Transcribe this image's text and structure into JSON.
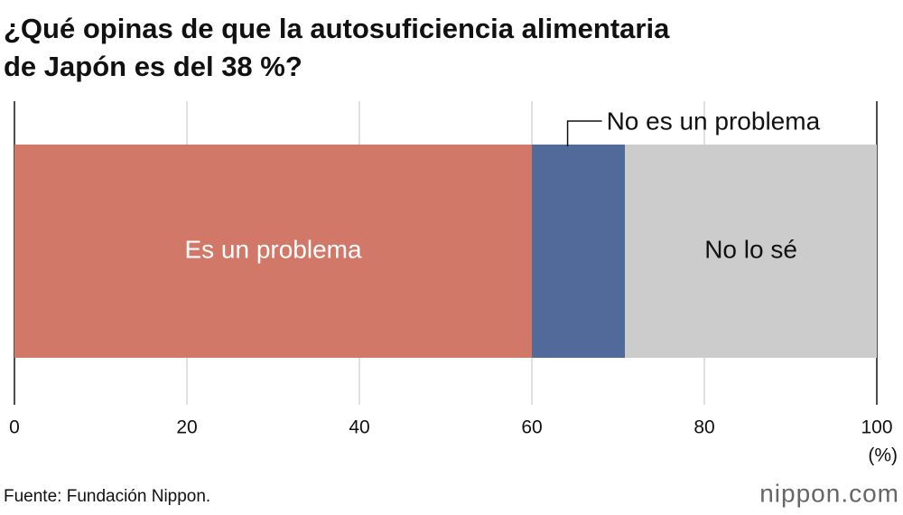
{
  "chart_data": {
    "type": "stacked-barh",
    "title": "¿Qué opinas de que la autosuficiencia alimentaria de Japón es del 38 %?",
    "series": [
      {
        "name": "Es un problema",
        "color": "#d17868",
        "values": [
          60
        ]
      },
      {
        "name": "No es un problema",
        "color": "#516a99",
        "values": [
          10.8
        ]
      },
      {
        "name": "No lo sé",
        "color": "#cccccc",
        "values": [
          29.2
        ]
      }
    ],
    "xlim": [
      0,
      100
    ],
    "xticks": [
      0,
      20,
      40,
      60,
      80,
      100
    ],
    "x_unit": "(%)",
    "grid": true,
    "source": "Fuente: Fundación Nippon.",
    "logo": "nippon.com"
  }
}
